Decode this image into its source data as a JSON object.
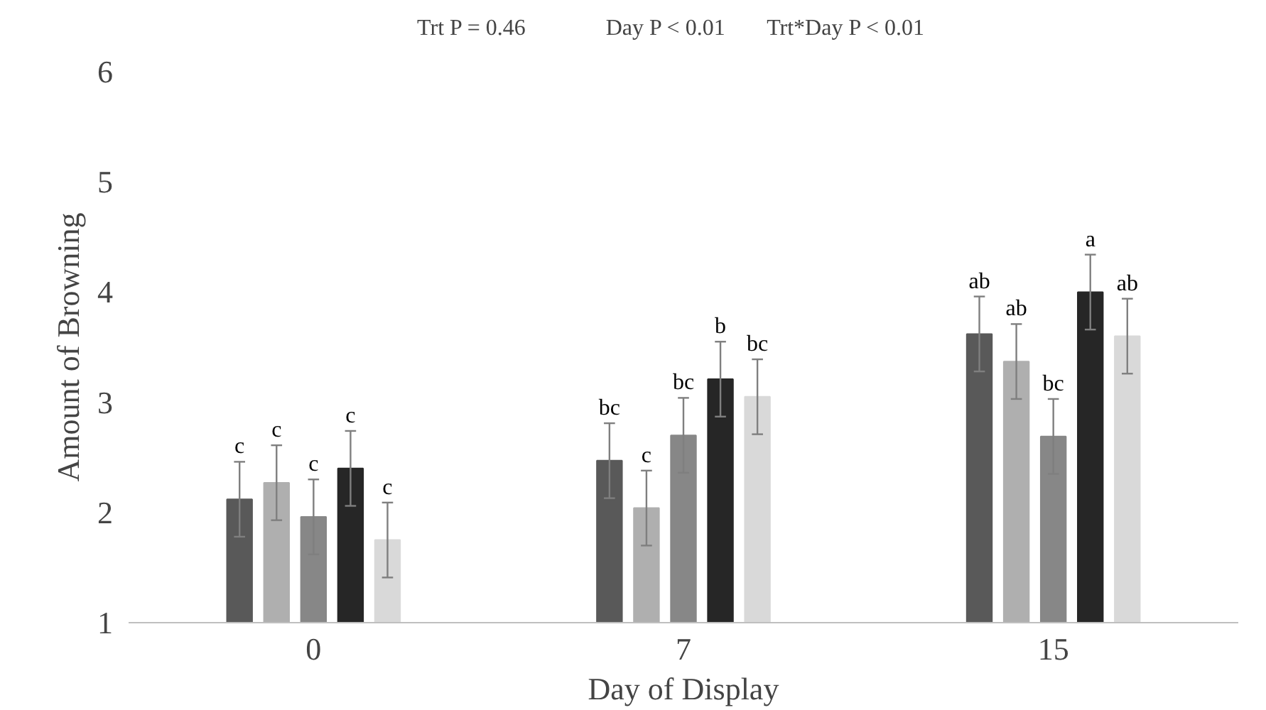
{
  "chart_data": {
    "type": "bar",
    "xlabel": "Day of Display",
    "ylabel": "Amount of Browning",
    "categories": [
      "0",
      "7",
      "15"
    ],
    "ylim": [
      1,
      6
    ],
    "yticks": [
      1,
      2,
      3,
      4,
      5,
      6
    ],
    "grid": false,
    "annotations": [
      "Trt P = 0.46",
      "Day P < 0.01",
      "Trt*Day P < 0.01"
    ],
    "series": [
      {
        "color": "#595959",
        "values": [
          2.12,
          2.47,
          3.62
        ],
        "errors": [
          0.34,
          0.34,
          0.34
        ],
        "value_labels": [
          "c",
          "bc",
          "ab"
        ]
      },
      {
        "color": "#afafaf",
        "values": [
          2.27,
          2.04,
          3.37
        ],
        "errors": [
          0.34,
          0.34,
          0.34
        ],
        "value_labels": [
          "c",
          "c",
          "ab"
        ]
      },
      {
        "color": "#878787",
        "values": [
          1.96,
          2.7,
          2.69
        ],
        "errors": [
          0.34,
          0.34,
          0.34
        ],
        "value_labels": [
          "c",
          "bc",
          "bc"
        ]
      },
      {
        "color": "#262626",
        "values": [
          2.4,
          3.21,
          4.0
        ],
        "errors": [
          0.34,
          0.34,
          0.34
        ],
        "value_labels": [
          "c",
          "b",
          "a"
        ]
      },
      {
        "color": "#d9d9d9",
        "values": [
          1.75,
          3.05,
          3.6
        ],
        "errors": [
          0.34,
          0.34,
          0.34
        ],
        "value_labels": [
          "c",
          "bc",
          "ab"
        ]
      }
    ]
  }
}
